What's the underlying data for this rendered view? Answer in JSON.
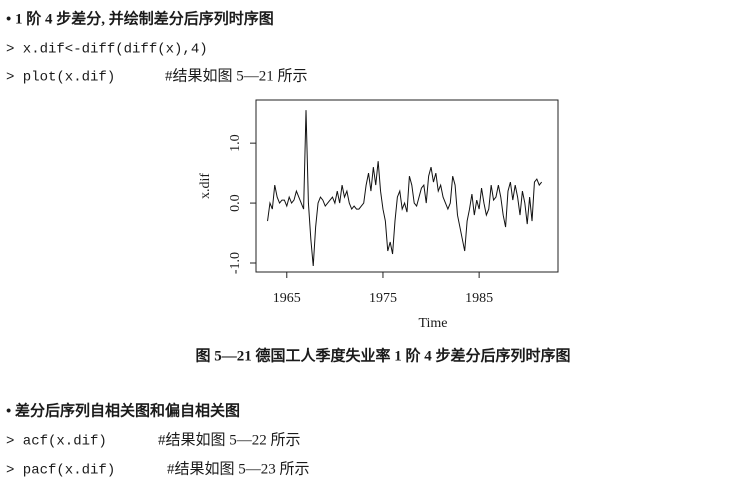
{
  "document": {
    "section1": "• 1 阶 4 步差分, 并绘制差分后序列时序图",
    "code1": "> x.dif<-diff(diff(x),4)",
    "code2": "> plot(x.dif)",
    "comment2": "#结果如图 5—21 所示",
    "caption": "图 5—21   德国工人季度失业率 1 阶 4 步差分后序列时序图",
    "section2": "• 差分后序列自相关图和偏自相关图",
    "code3": "> acf(x.dif)",
    "comment3": "#结果如图 5—22 所示",
    "code4": "> pacf(x.dif)",
    "comment4": "#结果如图 5—23 所示"
  },
  "chart_data": {
    "type": "line",
    "xlabel": "Time",
    "ylabel": "x.dif",
    "color": "#111111",
    "xlim": [
      1961.8,
      1993.2
    ],
    "ylim": [
      -1.15,
      1.72
    ],
    "xticks": [
      1965,
      1975,
      1985
    ],
    "yticks": [
      {
        "value": -1,
        "label": "-1.0"
      },
      {
        "value": 0,
        "label": "0.0"
      },
      {
        "value": 1,
        "label": "1.0"
      }
    ],
    "x": [
      1963,
      1963.25,
      1963.5,
      1963.75,
      1964,
      1964.25,
      1964.5,
      1964.75,
      1965,
      1965.25,
      1965.5,
      1965.75,
      1966,
      1966.25,
      1966.5,
      1966.75,
      1967,
      1967.25,
      1967.5,
      1967.75,
      1968,
      1968.25,
      1968.5,
      1968.75,
      1969,
      1969.25,
      1969.5,
      1969.75,
      1970,
      1970.25,
      1970.5,
      1970.75,
      1971,
      1971.25,
      1971.5,
      1971.75,
      1972,
      1972.25,
      1972.5,
      1972.75,
      1973,
      1973.25,
      1973.5,
      1973.75,
      1974,
      1974.25,
      1974.5,
      1974.75,
      1975,
      1975.25,
      1975.5,
      1975.75,
      1976,
      1976.25,
      1976.5,
      1976.75,
      1977,
      1977.25,
      1977.5,
      1977.75,
      1978,
      1978.25,
      1978.5,
      1978.75,
      1979,
      1979.25,
      1979.5,
      1979.75,
      1980,
      1980.25,
      1980.5,
      1980.75,
      1981,
      1981.25,
      1981.5,
      1981.75,
      1982,
      1982.25,
      1982.5,
      1982.75,
      1983,
      1983.25,
      1983.5,
      1983.75,
      1984,
      1984.25,
      1984.5,
      1984.75,
      1985,
      1985.25,
      1985.5,
      1985.75,
      1986,
      1986.25,
      1986.5,
      1986.75,
      1987,
      1987.25,
      1987.5,
      1987.75,
      1988,
      1988.25,
      1988.5,
      1988.75,
      1989,
      1989.25,
      1989.5,
      1989.75,
      1990,
      1990.25,
      1990.5,
      1990.75,
      1991,
      1991.25,
      1991.5
    ],
    "values": [
      -0.3,
      0.0,
      -0.1,
      0.3,
      0.1,
      0.0,
      0.05,
      0.05,
      -0.05,
      0.1,
      0.0,
      0.05,
      0.2,
      0.1,
      0.0,
      -0.1,
      1.55,
      0.0,
      -0.6,
      -1.05,
      -0.4,
      0.0,
      0.1,
      0.05,
      -0.05,
      0.0,
      0.05,
      0.1,
      0.0,
      0.2,
      0.0,
      0.3,
      0.1,
      0.2,
      0.0,
      -0.1,
      -0.05,
      -0.1,
      -0.1,
      -0.05,
      0.0,
      0.3,
      0.5,
      0.2,
      0.6,
      0.3,
      0.7,
      0.2,
      -0.1,
      -0.3,
      -0.8,
      -0.65,
      -0.85,
      -0.3,
      0.1,
      0.2,
      -0.1,
      0.0,
      -0.15,
      0.45,
      0.3,
      0.0,
      -0.05,
      0.1,
      0.25,
      0.3,
      0.0,
      0.45,
      0.6,
      0.35,
      0.5,
      0.2,
      0.3,
      0.1,
      0.0,
      -0.1,
      0.0,
      0.45,
      0.3,
      -0.2,
      -0.4,
      -0.6,
      -0.8,
      -0.3,
      -0.1,
      0.15,
      -0.2,
      0.05,
      -0.1,
      0.25,
      0.0,
      -0.2,
      -0.1,
      0.3,
      0.05,
      0.1,
      0.3,
      0.1,
      -0.2,
      -0.4,
      0.2,
      0.35,
      0.05,
      0.3,
      0.1,
      -0.2,
      0.2,
      0.0,
      -0.35,
      0.1,
      -0.3,
      0.35,
      0.4,
      0.3,
      0.35
    ]
  }
}
